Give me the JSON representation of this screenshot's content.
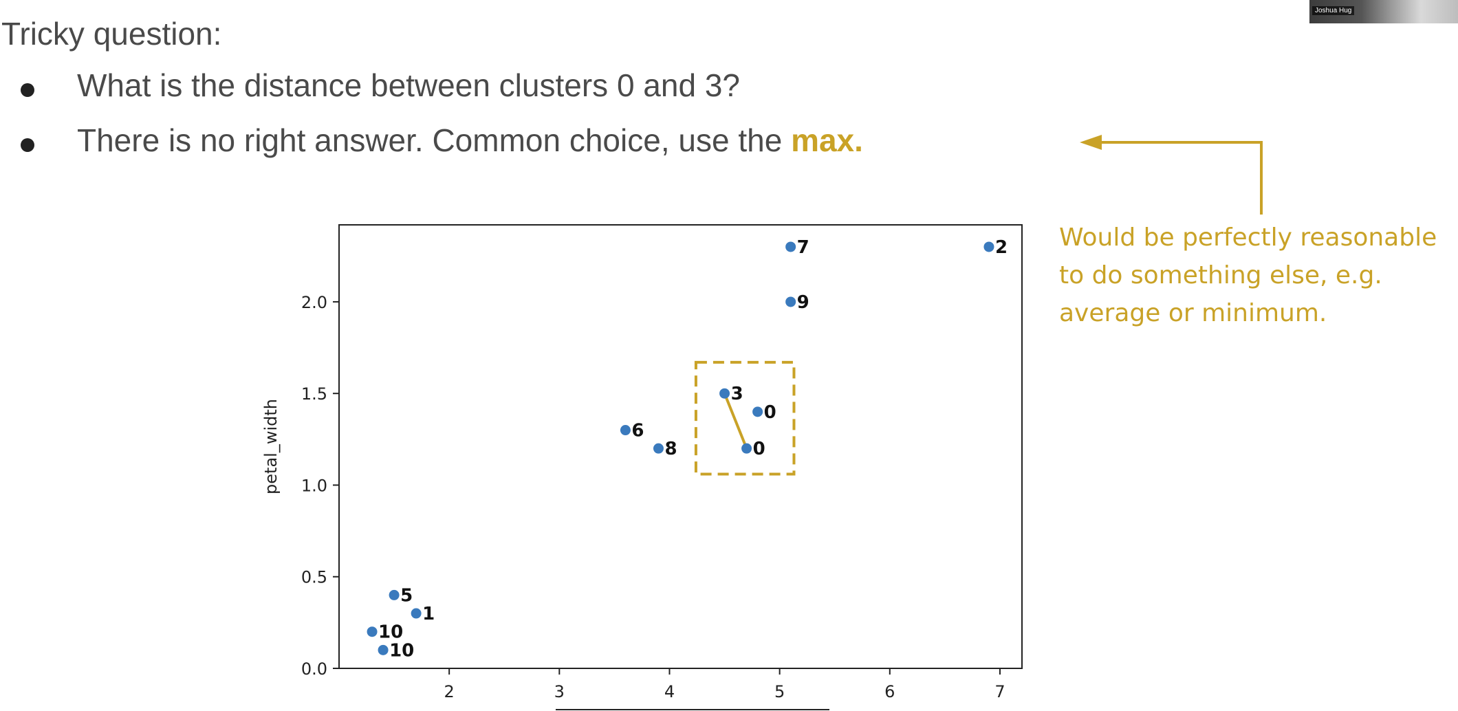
{
  "slide": {
    "heading": "Tricky question:",
    "bullets": [
      {
        "text": "What is the distance between clusters 0 and 3?",
        "emphasis": ""
      },
      {
        "text": "There is no right answer. Common choice, use the ",
        "emphasis": "max."
      }
    ],
    "annotation_lines": [
      "Would be perfectly reasonable",
      "to do something else, e.g.",
      "average or minimum."
    ],
    "webcam_label": "Joshua Hug",
    "accent_color": "#c9a227",
    "text_color": "#4a4a4a"
  },
  "chart_data": {
    "type": "scatter",
    "ylabel": "petal_width",
    "xlabel": "",
    "xlim": [
      1.0,
      7.2
    ],
    "ylim": [
      0.0,
      2.42
    ],
    "xticks": [
      2,
      3,
      4,
      5,
      6,
      7
    ],
    "yticks": [
      0.0,
      0.5,
      1.0,
      1.5,
      2.0
    ],
    "ytick_labels": [
      "0.0",
      "0.5",
      "1.0",
      "1.5",
      "2.0"
    ],
    "point_color": "#3a7abd",
    "points": [
      {
        "x": 5.1,
        "y": 2.3,
        "label": "7"
      },
      {
        "x": 6.9,
        "y": 2.3,
        "label": "2"
      },
      {
        "x": 5.1,
        "y": 2.0,
        "label": "9"
      },
      {
        "x": 4.5,
        "y": 1.5,
        "label": "3"
      },
      {
        "x": 4.8,
        "y": 1.4,
        "label": "0"
      },
      {
        "x": 4.7,
        "y": 1.2,
        "label": "0"
      },
      {
        "x": 3.6,
        "y": 1.3,
        "label": "6"
      },
      {
        "x": 3.9,
        "y": 1.2,
        "label": "8"
      },
      {
        "x": 1.5,
        "y": 0.4,
        "label": "5"
      },
      {
        "x": 1.7,
        "y": 0.3,
        "label": "1"
      },
      {
        "x": 1.3,
        "y": 0.2,
        "label": "10"
      },
      {
        "x": 1.4,
        "y": 0.1,
        "label": "10"
      }
    ],
    "highlight_line": {
      "from": [
        4.5,
        1.5
      ],
      "to": [
        4.7,
        1.2
      ],
      "color": "#c9a227"
    },
    "highlight_box": {
      "x0": 4.24,
      "x1": 5.13,
      "y0": 1.06,
      "y1": 1.67,
      "color": "#c9a227"
    }
  }
}
